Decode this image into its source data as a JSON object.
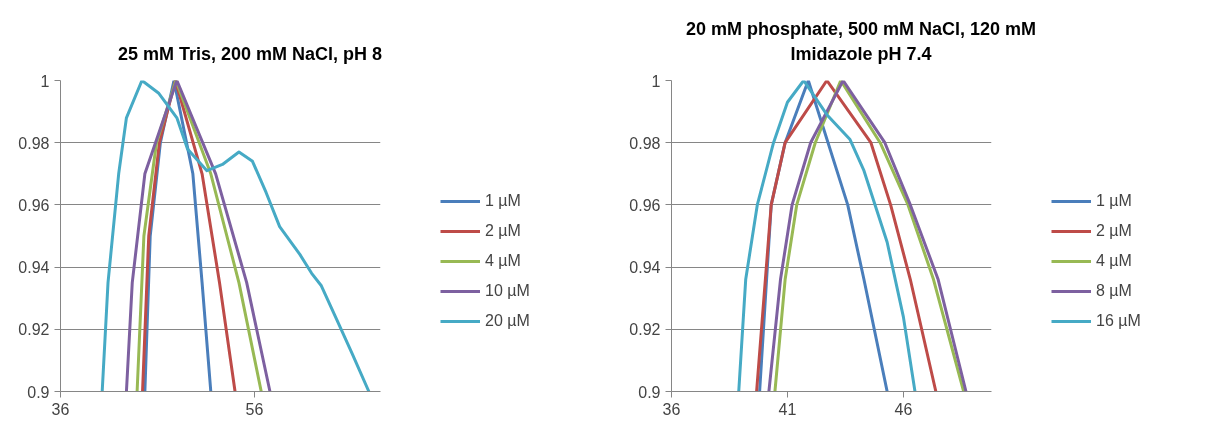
{
  "chart_data": [
    {
      "type": "line",
      "title": "25 mM Tris, 200 mM NaCl, pH 8",
      "xlim": [
        36,
        69
      ],
      "xticks": [
        36,
        56
      ],
      "ylim": [
        0.9,
        1
      ],
      "yticks": [
        0.9,
        0.92,
        0.94,
        0.96,
        0.98,
        1
      ],
      "grid": "y",
      "legend": "right",
      "line_style": "solid",
      "marker": "none",
      "series": [
        {
          "name": "1 µM",
          "color": "#4a7ebb",
          "x": [
            44.7,
            45.25,
            46.3,
            47.7,
            49.65,
            50.6,
            51.5
          ],
          "values": [
            0.9,
            0.95,
            0.98,
            1,
            0.97,
            0.935,
            0.9
          ]
        },
        {
          "name": "2 µM",
          "color": "#be4b48",
          "x": [
            44.46,
            45.1,
            46.2,
            47.85,
            50.6,
            52.4,
            54.0
          ],
          "values": [
            0.9,
            0.95,
            0.98,
            1,
            0.97,
            0.935,
            0.9
          ]
        },
        {
          "name": "4 µM",
          "color": "#98b954",
          "x": [
            43.9,
            44.6,
            45.9,
            47.9,
            51.5,
            54.4,
            56.7
          ],
          "values": [
            0.9,
            0.95,
            0.98,
            1,
            0.97,
            0.935,
            0.9
          ]
        },
        {
          "name": "10 µM",
          "color": "#7d60a0",
          "x": [
            42.8,
            43.4,
            44.7,
            48.0,
            52.0,
            55.2,
            57.6
          ],
          "values": [
            0.9,
            0.935,
            0.97,
            1,
            0.97,
            0.935,
            0.9
          ]
        },
        {
          "name": "20 µM",
          "color": "#46aac5",
          "x": [
            40.3,
            40.9,
            42.0,
            42.8,
            44.4,
            46.1,
            48.0,
            49.1,
            51.1,
            52.7,
            54.4,
            55.8,
            57.2,
            58.6,
            60.7,
            61.9,
            62.9,
            64.5,
            66.1,
            67.8
          ],
          "values": [
            0.9,
            0.935,
            0.97,
            0.988,
            1,
            0.996,
            0.988,
            0.978,
            0.971,
            0.973,
            0.977,
            0.974,
            0.964,
            0.953,
            0.944,
            0.938,
            0.934,
            0.923,
            0.912,
            0.9
          ]
        }
      ]
    },
    {
      "type": "line",
      "title": "20 mM phosphate, 500 mM NaCl, 120 mM Imidazole pH 7.4",
      "xlim": [
        36,
        49.8
      ],
      "xticks": [
        36,
        41,
        46
      ],
      "ylim": [
        0.9,
        1
      ],
      "yticks": [
        0.9,
        0.92,
        0.94,
        0.96,
        0.98,
        1
      ],
      "grid": "y",
      "legend": "right",
      "line_style": "solid",
      "marker": "none",
      "series": [
        {
          "name": "1 µM",
          "color": "#4a7ebb",
          "x": [
            39.8,
            40.3,
            40.9,
            41.9,
            43.6,
            44.3,
            45.3
          ],
          "values": [
            0.9,
            0.96,
            0.98,
            1,
            0.96,
            0.936,
            0.9
          ]
        },
        {
          "name": "2 µM",
          "color": "#be4b48",
          "x": [
            39.67,
            40.3,
            40.9,
            42.7,
            44.6,
            45.45,
            46.3,
            47.4
          ],
          "values": [
            0.9,
            0.96,
            0.98,
            1,
            0.98,
            0.96,
            0.936,
            0.9
          ]
        },
        {
          "name": "4 µM",
          "color": "#98b954",
          "x": [
            40.46,
            40.9,
            41.4,
            42.2,
            43.3,
            45.0,
            46.2,
            47.3,
            48.6
          ],
          "values": [
            0.9,
            0.936,
            0.96,
            0.98,
            1,
            0.98,
            0.96,
            0.936,
            0.9
          ]
        },
        {
          "name": "8 µM",
          "color": "#7d60a0",
          "x": [
            40.2,
            40.7,
            41.2,
            42.0,
            43.4,
            45.2,
            46.3,
            47.5,
            48.7
          ],
          "values": [
            0.9,
            0.936,
            0.96,
            0.98,
            1,
            0.98,
            0.96,
            0.936,
            0.9
          ]
        },
        {
          "name": "16 µM",
          "color": "#46aac5",
          "x": [
            38.9,
            39.2,
            39.7,
            40.4,
            41.0,
            41.7,
            42.7,
            43.7,
            44.3,
            45.3,
            46.0,
            46.5
          ],
          "values": [
            0.9,
            0.936,
            0.96,
            0.98,
            0.993,
            1,
            0.989,
            0.981,
            0.971,
            0.948,
            0.924,
            0.9
          ]
        }
      ]
    }
  ]
}
